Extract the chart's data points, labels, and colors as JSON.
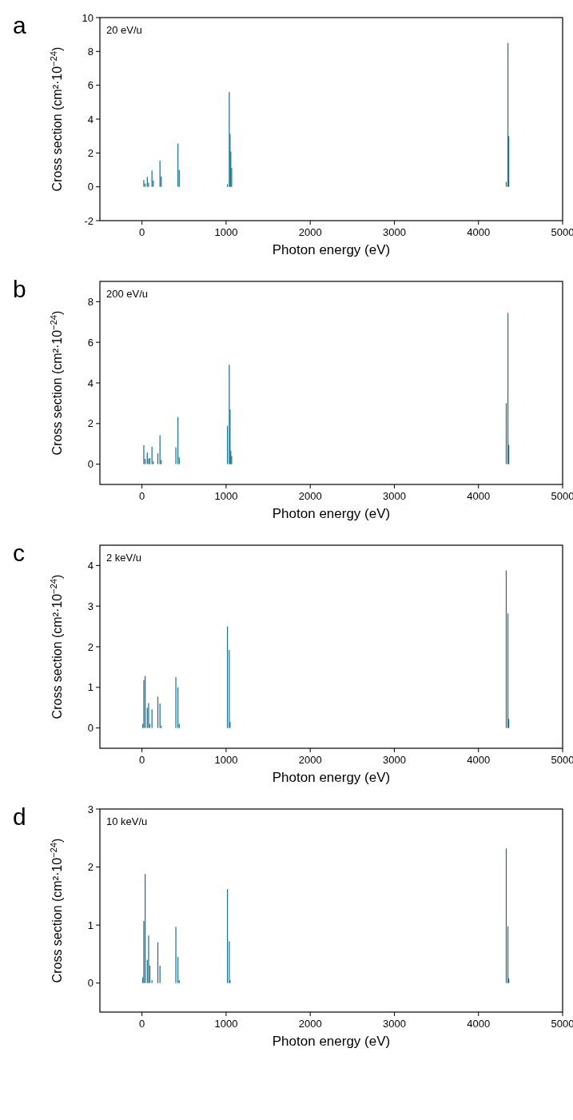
{
  "chart_data": [
    {
      "type": "bar",
      "title": "a",
      "annotations": [
        "20 eV/u"
      ],
      "xlabel": "Photon energy (eV)",
      "ylabel": "Cross section (cm²·10$^{−24}$)",
      "xlim": [
        -500,
        5000
      ],
      "xticks": [
        0,
        1000,
        2000,
        3000,
        4000,
        5000
      ],
      "ylim": [
        -2,
        10
      ],
      "yticks": [
        -2,
        0,
        2,
        4,
        6,
        8,
        10
      ],
      "x": [
        22,
        38,
        63,
        79,
        119,
        135,
        214,
        229,
        428,
        443,
        1016,
        1038,
        1047,
        1056,
        1066,
        4330,
        4350,
        4360
      ],
      "series": [
        {
          "color": "#1a6e8e",
          "values": [
            0.4,
            0.19,
            0.59,
            0.24,
            0.96,
            0.37,
            1.55,
            0.61,
            2.56,
            0.99,
            0.16,
            5.6,
            3.12,
            2.08,
            1.12,
            0.3,
            8.5,
            3.0
          ]
        }
      ]
    },
    {
      "type": "bar",
      "title": "b",
      "annotations": [
        "200 eV/u"
      ],
      "xlabel": "Photon energy (eV)",
      "ylabel": "Cross section (cm²·10$^{−24}$)",
      "xlim": [
        -500,
        5000
      ],
      "xticks": [
        0,
        1000,
        2000,
        3000,
        4000,
        5000
      ],
      "ylim": [
        -1,
        9
      ],
      "yticks": [
        0,
        2,
        4,
        6,
        8
      ],
      "x": [
        22,
        38,
        63,
        79,
        94,
        119,
        135,
        189,
        214,
        229,
        403,
        428,
        443,
        1016,
        1038,
        1047,
        1056,
        1066,
        4330,
        4350,
        4360
      ],
      "series": [
        {
          "color": "#1a6e8e",
          "values": [
            0.93,
            0.26,
            0.57,
            0.26,
            0.3,
            0.86,
            0.13,
            0.53,
            1.42,
            0.2,
            0.83,
            2.32,
            0.33,
            1.89,
            4.9,
            2.7,
            0.66,
            0.4,
            3.0,
            7.45,
            0.95
          ]
        }
      ]
    },
    {
      "type": "bar",
      "title": "c",
      "annotations": [
        "2 keV/u"
      ],
      "xlabel": "Photon energy (eV)",
      "ylabel": "Cross section (cm²·10$^{−24}$)",
      "xlim": [
        -500,
        5000
      ],
      "xticks": [
        0,
        1000,
        2000,
        3000,
        4000,
        5000
      ],
      "ylim": [
        -0.5,
        4.5
      ],
      "yticks": [
        0,
        1,
        2,
        3,
        4
      ],
      "x": [
        10,
        22,
        38,
        63,
        79,
        94,
        119,
        189,
        214,
        229,
        403,
        428,
        443,
        1016,
        1038,
        1047,
        4330,
        4350,
        4360
      ],
      "series": [
        {
          "color": "#1a6e8e",
          "values": [
            0.1,
            1.18,
            1.28,
            0.5,
            0.61,
            0.1,
            0.46,
            0.77,
            0.6,
            0.05,
            1.25,
            1.0,
            0.1,
            2.5,
            1.92,
            0.15,
            3.88,
            2.82,
            0.22
          ]
        }
      ]
    },
    {
      "type": "bar",
      "title": "d",
      "annotations": [
        "10 keV/u"
      ],
      "xlabel": "Photon energy (eV)",
      "ylabel": "Cross section (cm²·10$^{−24}$)",
      "xlim": [
        -500,
        5000
      ],
      "xticks": [
        0,
        1000,
        2000,
        3000,
        4000,
        5000
      ],
      "ylim": [
        -0.5,
        3
      ],
      "yticks": [
        0,
        1,
        2,
        3
      ],
      "x": [
        10,
        22,
        38,
        63,
        79,
        94,
        119,
        189,
        214,
        403,
        428,
        443,
        1016,
        1038,
        1047,
        4330,
        4350,
        4360
      ],
      "series": [
        {
          "color": "#1a6e8e",
          "values": [
            0.1,
            1.07,
            1.88,
            0.4,
            0.82,
            0.3,
            0.05,
            0.7,
            0.3,
            0.97,
            0.45,
            0.05,
            1.62,
            0.72,
            0.05,
            2.32,
            0.98,
            0.08
          ]
        }
      ]
    }
  ]
}
